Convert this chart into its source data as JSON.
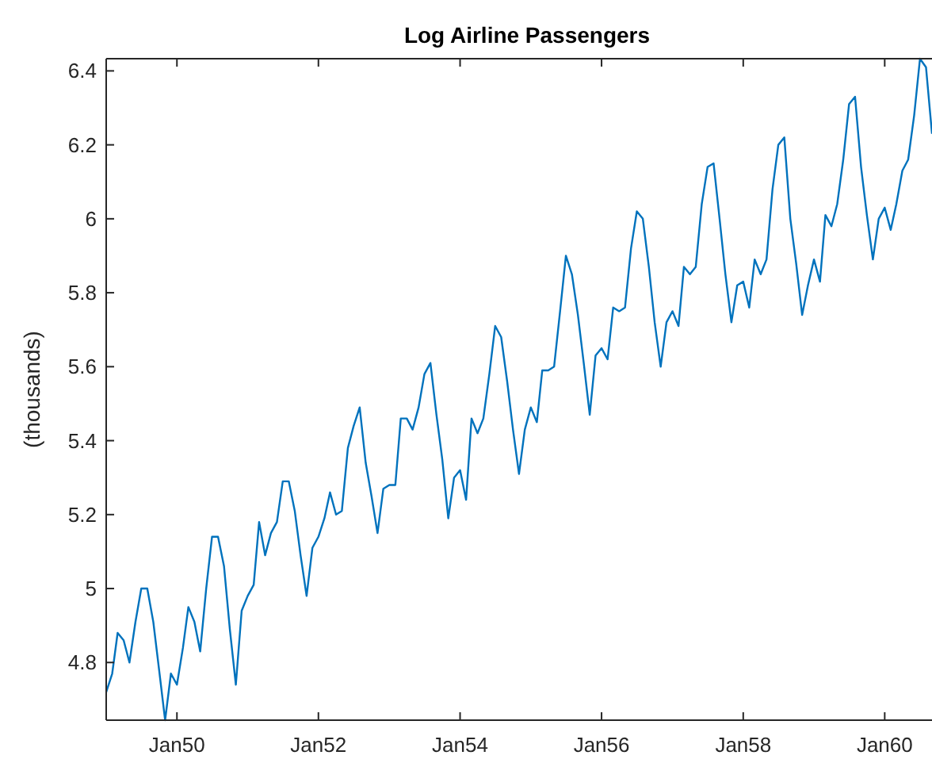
{
  "chart_data": {
    "type": "line",
    "title": "Log Airline Passengers",
    "ylabel": "(thousands)",
    "x": [
      "1949-01",
      "1949-02",
      "1949-03",
      "1949-04",
      "1949-05",
      "1949-06",
      "1949-07",
      "1949-08",
      "1949-09",
      "1949-10",
      "1949-11",
      "1949-12",
      "1950-01",
      "1950-02",
      "1950-03",
      "1950-04",
      "1950-05",
      "1950-06",
      "1950-07",
      "1950-08",
      "1950-09",
      "1950-10",
      "1950-11",
      "1950-12",
      "1951-01",
      "1951-02",
      "1951-03",
      "1951-04",
      "1951-05",
      "1951-06",
      "1951-07",
      "1951-08",
      "1951-09",
      "1951-10",
      "1951-11",
      "1951-12",
      "1952-01",
      "1952-02",
      "1952-03",
      "1952-04",
      "1952-05",
      "1952-06",
      "1952-07",
      "1952-08",
      "1952-09",
      "1952-10",
      "1952-11",
      "1952-12",
      "1953-01",
      "1953-02",
      "1953-03",
      "1953-04",
      "1953-05",
      "1953-06",
      "1953-07",
      "1953-08",
      "1953-09",
      "1953-10",
      "1953-11",
      "1953-12",
      "1954-01",
      "1954-02",
      "1954-03",
      "1954-04",
      "1954-05",
      "1954-06",
      "1954-07",
      "1954-08",
      "1954-09",
      "1954-10",
      "1954-11",
      "1954-12",
      "1955-01",
      "1955-02",
      "1955-03",
      "1955-04",
      "1955-05",
      "1955-06",
      "1955-07",
      "1955-08",
      "1955-09",
      "1955-10",
      "1955-11",
      "1955-12",
      "1956-01",
      "1956-02",
      "1956-03",
      "1956-04",
      "1956-05",
      "1956-06",
      "1956-07",
      "1956-08",
      "1956-09",
      "1956-10",
      "1956-11",
      "1956-12",
      "1957-01",
      "1957-02",
      "1957-03",
      "1957-04",
      "1957-05",
      "1957-06",
      "1957-07",
      "1957-08",
      "1957-09",
      "1957-10",
      "1957-11",
      "1957-12",
      "1958-01",
      "1958-02",
      "1958-03",
      "1958-04",
      "1958-05",
      "1958-06",
      "1958-07",
      "1958-08",
      "1958-09",
      "1958-10",
      "1958-11",
      "1958-12",
      "1959-01",
      "1959-02",
      "1959-03",
      "1959-04",
      "1959-05",
      "1959-06",
      "1959-07",
      "1959-08",
      "1959-09",
      "1959-10",
      "1959-11",
      "1959-12",
      "1960-01",
      "1960-02",
      "1960-03",
      "1960-04",
      "1960-05",
      "1960-06",
      "1960-07",
      "1960-08",
      "1960-09"
    ],
    "series": [
      {
        "color": "#0072bd",
        "values": [
          4.72,
          4.77,
          4.88,
          4.86,
          4.8,
          4.91,
          5.0,
          5.0,
          4.91,
          4.78,
          4.644,
          4.77,
          4.74,
          4.84,
          4.95,
          4.91,
          4.83,
          5.0,
          5.14,
          5.14,
          5.06,
          4.89,
          4.74,
          4.94,
          4.98,
          5.01,
          5.18,
          5.09,
          5.15,
          5.18,
          5.29,
          5.29,
          5.21,
          5.09,
          4.98,
          5.11,
          5.14,
          5.19,
          5.26,
          5.2,
          5.21,
          5.38,
          5.44,
          5.49,
          5.34,
          5.25,
          5.15,
          5.27,
          5.28,
          5.28,
          5.46,
          5.46,
          5.43,
          5.49,
          5.58,
          5.61,
          5.47,
          5.35,
          5.19,
          5.3,
          5.32,
          5.24,
          5.46,
          5.42,
          5.46,
          5.58,
          5.71,
          5.68,
          5.56,
          5.43,
          5.31,
          5.43,
          5.49,
          5.45,
          5.59,
          5.59,
          5.6,
          5.75,
          5.9,
          5.85,
          5.74,
          5.61,
          5.47,
          5.63,
          5.65,
          5.62,
          5.76,
          5.75,
          5.76,
          5.92,
          6.02,
          6.0,
          5.87,
          5.72,
          5.6,
          5.72,
          5.75,
          5.71,
          5.87,
          5.85,
          5.87,
          6.04,
          6.14,
          6.15,
          6.0,
          5.85,
          5.72,
          5.82,
          5.83,
          5.76,
          5.89,
          5.85,
          5.89,
          6.08,
          6.2,
          6.22,
          6.0,
          5.88,
          5.74,
          5.82,
          5.89,
          5.83,
          6.01,
          5.98,
          6.04,
          6.16,
          6.31,
          6.33,
          6.14,
          6.01,
          5.89,
          6.0,
          6.03,
          5.97,
          6.04,
          6.13,
          6.16,
          6.28,
          6.433,
          6.41,
          6.23
        ]
      }
    ],
    "xlim": [
      "1949-01",
      "1960-09"
    ],
    "xticks": [
      {
        "value": "1950-01",
        "label": "Jan50"
      },
      {
        "value": "1952-01",
        "label": "Jan52"
      },
      {
        "value": "1954-01",
        "label": "Jan54"
      },
      {
        "value": "1956-01",
        "label": "Jan56"
      },
      {
        "value": "1958-01",
        "label": "Jan58"
      },
      {
        "value": "1960-01",
        "label": "Jan60"
      }
    ],
    "ylim": [
      4.644,
      6.433
    ],
    "yticks": [
      4.8,
      {
        "value": 5,
        "label": "5"
      },
      5.2,
      5.4,
      5.6,
      5.8,
      {
        "value": 6,
        "label": "6"
      },
      6.2,
      6.4
    ],
    "line_style": "solid"
  }
}
